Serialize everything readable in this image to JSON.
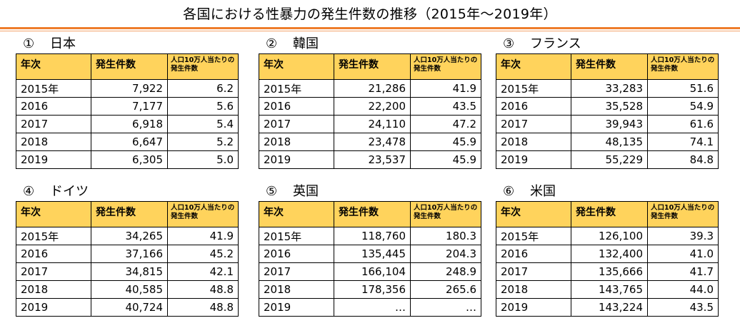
{
  "title": "各国における性暴力の発生件数の推移（2015年～2019年）",
  "header": {
    "year": "年次",
    "count": "発生件数",
    "rate": "人口10万人当たりの発生件数"
  },
  "blocks": [
    {
      "number": "①",
      "country": "日本",
      "rows": [
        {
          "year": "2015年",
          "count": "7,922",
          "rate": "6.2"
        },
        {
          "year": "2016",
          "count": "7,177",
          "rate": "5.6"
        },
        {
          "year": "2017",
          "count": "6,918",
          "rate": "5.4"
        },
        {
          "year": "2018",
          "count": "6,647",
          "rate": "5.2"
        },
        {
          "year": "2019",
          "count": "6,305",
          "rate": "5.0"
        }
      ]
    },
    {
      "number": "②",
      "country": "韓国",
      "rows": [
        {
          "year": "2015年",
          "count": "21,286",
          "rate": "41.9"
        },
        {
          "year": "2016",
          "count": "22,200",
          "rate": "43.5"
        },
        {
          "year": "2017",
          "count": "24,110",
          "rate": "47.2"
        },
        {
          "year": "2018",
          "count": "23,478",
          "rate": "45.9"
        },
        {
          "year": "2019",
          "count": "23,537",
          "rate": "45.9"
        }
      ]
    },
    {
      "number": "③",
      "country": "フランス",
      "rows": [
        {
          "year": "2015年",
          "count": "33,283",
          "rate": "51.6"
        },
        {
          "year": "2016",
          "count": "35,528",
          "rate": "54.9"
        },
        {
          "year": "2017",
          "count": "39,943",
          "rate": "61.6"
        },
        {
          "year": "2018",
          "count": "48,135",
          "rate": "74.1"
        },
        {
          "year": "2019",
          "count": "55,229",
          "rate": "84.8"
        }
      ]
    },
    {
      "number": "④",
      "country": "ドイツ",
      "rows": [
        {
          "year": "2015年",
          "count": "34,265",
          "rate": "41.9"
        },
        {
          "year": "2016",
          "count": "37,166",
          "rate": "45.2"
        },
        {
          "year": "2017",
          "count": "34,815",
          "rate": "42.1"
        },
        {
          "year": "2018",
          "count": "40,585",
          "rate": "48.8"
        },
        {
          "year": "2019",
          "count": "40,724",
          "rate": "48.8"
        }
      ]
    },
    {
      "number": "⑤",
      "country": "英国",
      "rows": [
        {
          "year": "2015年",
          "count": "118,760",
          "rate": "180.3"
        },
        {
          "year": "2016",
          "count": "135,445",
          "rate": "204.3"
        },
        {
          "year": "2017",
          "count": "166,104",
          "rate": "248.9"
        },
        {
          "year": "2018",
          "count": "178,356",
          "rate": "265.6"
        },
        {
          "year": "2019",
          "count": "…",
          "rate": "…"
        }
      ]
    },
    {
      "number": "⑥",
      "country": "米国",
      "rows": [
        {
          "year": "2015年",
          "count": "126,100",
          "rate": "39.3"
        },
        {
          "year": "2016",
          "count": "132,400",
          "rate": "41.0"
        },
        {
          "year": "2017",
          "count": "135,666",
          "rate": "41.7"
        },
        {
          "year": "2018",
          "count": "143,765",
          "rate": "44.0"
        },
        {
          "year": "2019",
          "count": "143,224",
          "rate": "43.5"
        }
      ]
    }
  ]
}
